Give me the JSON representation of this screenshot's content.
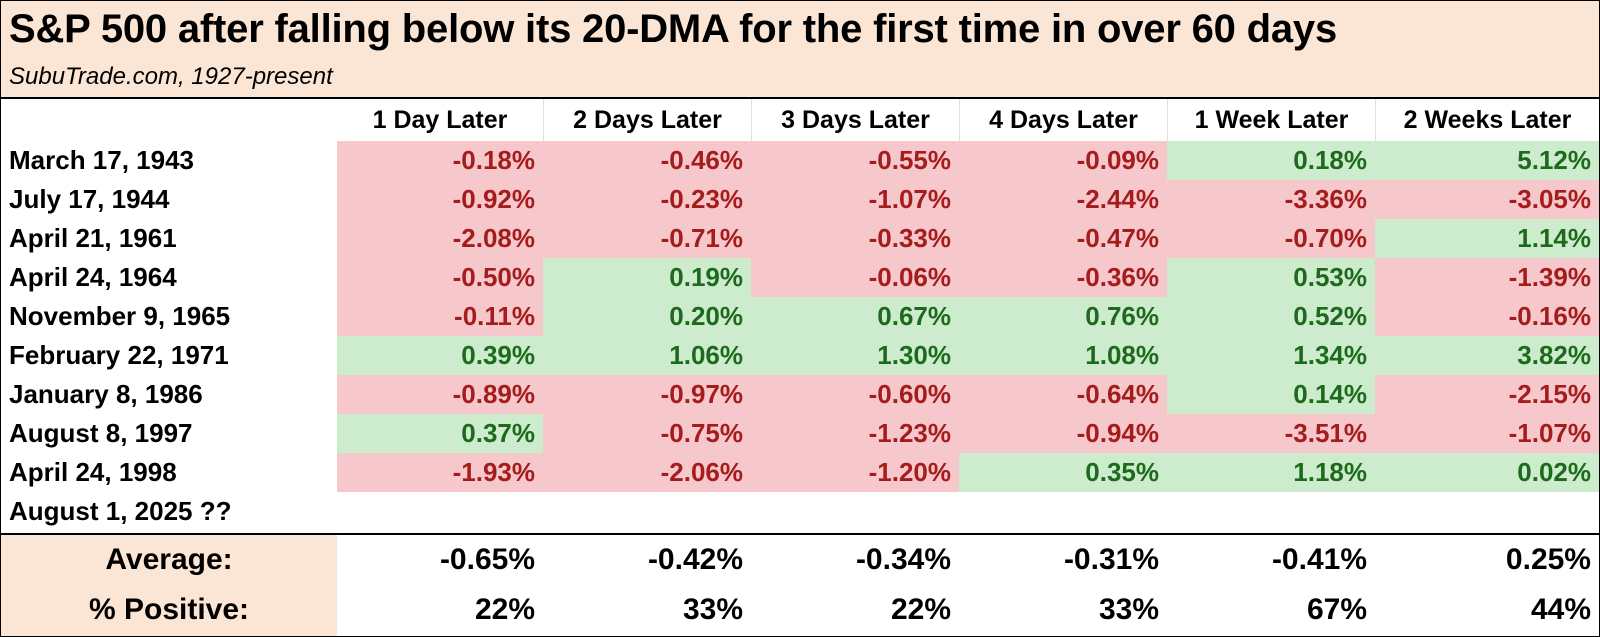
{
  "title": "S&P 500 after falling below its 20-DMA for the first time in over 60 days",
  "subtitle": "SubuTrade.com, 1927-present",
  "columns": [
    "1 Day Later",
    "2 Days Later",
    "3 Days Later",
    "4 Days Later",
    "1 Week Later",
    "2 Weeks Later"
  ],
  "colors": {
    "negative_bg": "#f6c7cb",
    "negative_text": "#a51c1c",
    "positive_bg": "#cdeccd",
    "positive_text": "#1d6a1d",
    "header_bg": "#fbe6d6"
  },
  "rows": [
    {
      "date": "March 17, 1943",
      "values": [
        "-0.18%",
        "-0.46%",
        "-0.55%",
        "-0.09%",
        "0.18%",
        "5.12%"
      ]
    },
    {
      "date": "July 17, 1944",
      "values": [
        "-0.92%",
        "-0.23%",
        "-1.07%",
        "-2.44%",
        "-3.36%",
        "-3.05%"
      ]
    },
    {
      "date": "April 21, 1961",
      "values": [
        "-2.08%",
        "-0.71%",
        "-0.33%",
        "-0.47%",
        "-0.70%",
        "1.14%"
      ]
    },
    {
      "date": "April 24, 1964",
      "values": [
        "-0.50%",
        "0.19%",
        "-0.06%",
        "-0.36%",
        "0.53%",
        "-1.39%"
      ]
    },
    {
      "date": "November 9, 1965",
      "values": [
        "-0.11%",
        "0.20%",
        "0.67%",
        "0.76%",
        "0.52%",
        "-0.16%"
      ]
    },
    {
      "date": "February 22, 1971",
      "values": [
        "0.39%",
        "1.06%",
        "1.30%",
        "1.08%",
        "1.34%",
        "3.82%"
      ]
    },
    {
      "date": "January 8, 1986",
      "values": [
        "-0.89%",
        "-0.97%",
        "-0.60%",
        "-0.64%",
        "0.14%",
        "-2.15%"
      ]
    },
    {
      "date": "August 8, 1997",
      "values": [
        "0.37%",
        "-0.75%",
        "-1.23%",
        "-0.94%",
        "-3.51%",
        "-1.07%"
      ]
    },
    {
      "date": "April 24, 1998",
      "values": [
        "-1.93%",
        "-2.06%",
        "-1.20%",
        "0.35%",
        "1.18%",
        "0.02%"
      ]
    },
    {
      "date": "August 1, 2025 ??",
      "values": [
        "",
        "",
        "",
        "",
        "",
        ""
      ]
    }
  ],
  "summary": [
    {
      "label": "Average:",
      "values": [
        "-0.65%",
        "-0.42%",
        "-0.34%",
        "-0.31%",
        "-0.41%",
        "0.25%"
      ]
    },
    {
      "label": "% Positive:",
      "values": [
        "22%",
        "33%",
        "22%",
        "33%",
        "67%",
        "44%"
      ]
    }
  ]
}
